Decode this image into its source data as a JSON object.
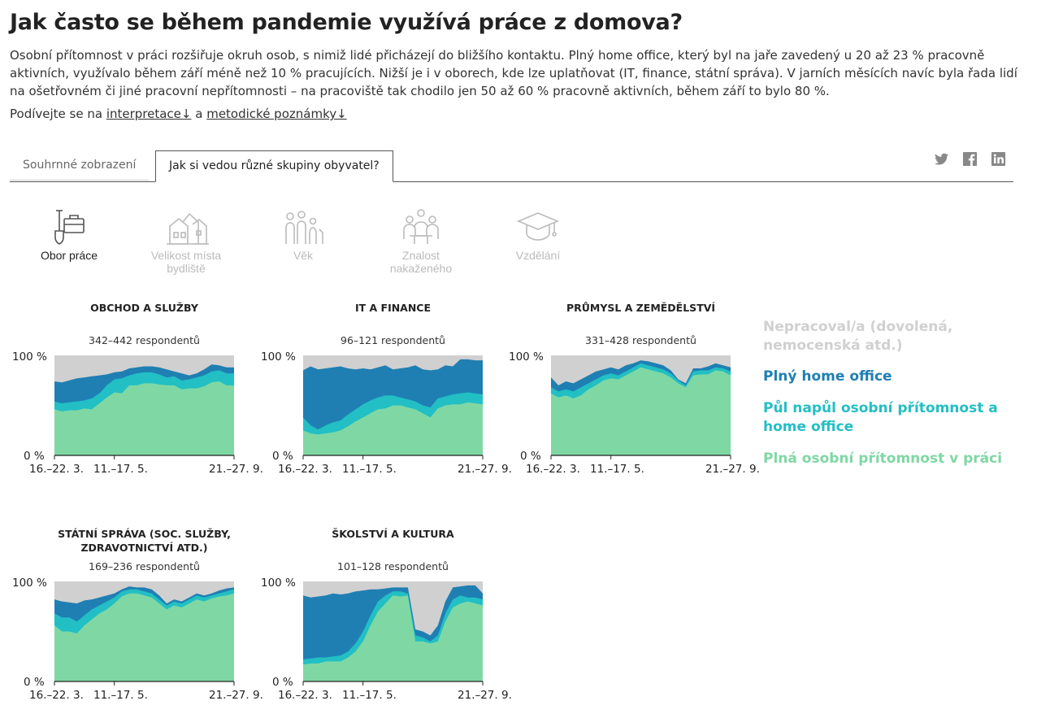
{
  "title": "Jak často se během pandemie využívá práce z domova?",
  "intro": "Osobní přítomnost v práci rozšiřuje okruh osob, s nimiž lidé přicházejí do bližšího kontaktu. Plný home office, který byl na jaře zavedený u 20 až 23 % pracovně aktivních, využívalo během září méně než 10 % pracujících. Nižší je i v oborech, kde lze uplatňovat (IT, finance, státní správa). V jarních měsících navíc byla řada lidí na ošetřovném či jiné pracovní nepřítomnosti – na pracoviště tak chodilo jen 50 až 60 % pracovně aktivních, během září to bylo 80 %.",
  "see": {
    "prefix": "Podívejte se na ",
    "link1": "interpretace↓",
    "mid": " a ",
    "link2": "metodické poznámky↓"
  },
  "tabs": [
    {
      "label": "Souhrnné zobrazení"
    },
    {
      "label": "Jak si vedou různé skupiny obyvatel?"
    }
  ],
  "categories": [
    {
      "label": "Obor práce",
      "icon": "shovel-briefcase-icon"
    },
    {
      "label": "Velikost místa bydliště",
      "icon": "houses-icon"
    },
    {
      "label": "Věk",
      "icon": "people-ages-icon"
    },
    {
      "label": "Znalost nakaženého",
      "icon": "people-meeting-icon"
    },
    {
      "label": "Vzdělání",
      "icon": "graduation-cap-icon"
    }
  ],
  "colors": {
    "none": "#d0d0d0",
    "full_home": "#1f7fb3",
    "half": "#22bfc4",
    "full_office": "#7fd8a4"
  },
  "legend": [
    {
      "label": "Nepracoval/a (dovolená, nemocenská atd.)",
      "color": "#d0d0d0"
    },
    {
      "label": "Plný home office",
      "color": "#1f7fb3"
    },
    {
      "label": "Půl napůl osobní přítomnost a home office",
      "color": "#22bfc4"
    },
    {
      "label": "Plná osobní přítomnost v práci",
      "color": "#7fd8a4"
    }
  ],
  "chart_data": [
    {
      "type": "area",
      "title": "OBCHOD A SLUŽBY",
      "subtitle": "342–442 respondentů",
      "ylim": [
        0,
        100
      ],
      "yticks": [
        "100 %",
        "0 %"
      ],
      "xticks": [
        "16.–22. 3.",
        "11.–17. 5.",
        "21.–27. 9."
      ],
      "series": {
        "office": [
          46,
          44,
          45,
          45,
          47,
          46,
          52,
          58,
          63,
          62,
          70,
          70,
          72,
          72,
          71,
          70,
          70,
          66,
          67,
          67,
          69,
          73,
          74,
          70,
          70
        ],
        "half": [
          54,
          52,
          53,
          54,
          55,
          57,
          62,
          70,
          76,
          77,
          80,
          82,
          83,
          83,
          81,
          78,
          79,
          75,
          76,
          78,
          80,
          84,
          85,
          82,
          82
        ],
        "home": [
          74,
          73,
          75,
          77,
          78,
          79,
          80,
          81,
          83,
          84,
          87,
          88,
          89,
          89,
          88,
          86,
          84,
          82,
          80,
          82,
          86,
          91,
          90,
          88,
          88
        ]
      }
    },
    {
      "type": "area",
      "title": "IT A FINANCE",
      "subtitle": "96–121 respondentů",
      "ylim": [
        0,
        100
      ],
      "yticks": [
        "100 %",
        "0 %"
      ],
      "xticks": [
        "16.–22. 3.",
        "11.–17. 5.",
        "21.–27. 9."
      ],
      "series": {
        "office": [
          25,
          22,
          21,
          22,
          23,
          25,
          29,
          34,
          38,
          42,
          46,
          47,
          50,
          50,
          48,
          46,
          42,
          38,
          47,
          50,
          51,
          51,
          53,
          52,
          51
        ],
        "half": [
          38,
          30,
          26,
          30,
          33,
          35,
          41,
          46,
          51,
          55,
          58,
          60,
          60,
          58,
          56,
          54,
          50,
          48,
          57,
          59,
          61,
          62,
          63,
          62,
          61
        ],
        "home": [
          85,
          89,
          86,
          87,
          88,
          89,
          87,
          86,
          87,
          86,
          88,
          90,
          86,
          87,
          88,
          90,
          86,
          85,
          86,
          90,
          89,
          96,
          96,
          95,
          95
        ]
      }
    },
    {
      "type": "area",
      "title": "PRŮMYSL A ZEMĚDĚLSTVÍ",
      "subtitle": "331–428 respondentů",
      "ylim": [
        0,
        100
      ],
      "yticks": [
        "100 %",
        "0 %"
      ],
      "xticks": [
        "16.–22. 3.",
        "11.–17. 5.",
        "21.–27. 9."
      ],
      "series": {
        "office": [
          62,
          58,
          60,
          57,
          60,
          66,
          70,
          75,
          77,
          76,
          80,
          84,
          88,
          86,
          84,
          82,
          78,
          72,
          68,
          80,
          81,
          81,
          85,
          84,
          80
        ],
        "half": [
          68,
          64,
          66,
          64,
          68,
          72,
          76,
          80,
          82,
          80,
          84,
          88,
          92,
          90,
          88,
          86,
          82,
          75,
          70,
          84,
          85,
          85,
          88,
          87,
          84
        ],
        "home": [
          78,
          70,
          74,
          72,
          76,
          80,
          84,
          86,
          88,
          86,
          90,
          92,
          95,
          94,
          92,
          90,
          85,
          76,
          72,
          87,
          87,
          89,
          92,
          90,
          88
        ]
      }
    },
    {
      "type": "area",
      "title": "STÁTNÍ SPRÁVA (SOC. SLUŽBY, ZDRAVOTNICTVÍ ATD.)",
      "subtitle": "169–236 respondentů",
      "ylim": [
        0,
        100
      ],
      "yticks": [
        "100 %",
        "0 %"
      ],
      "xticks": [
        "16.–22. 3.",
        "11.–17. 5.",
        "21.–27. 9."
      ],
      "series": {
        "office": [
          56,
          50,
          50,
          48,
          56,
          62,
          68,
          72,
          78,
          85,
          88,
          88,
          86,
          84,
          78,
          72,
          76,
          74,
          78,
          82,
          80,
          83,
          85,
          86,
          88
        ],
        "half": [
          68,
          64,
          64,
          60,
          66,
          72,
          76,
          80,
          84,
          90,
          92,
          92,
          90,
          88,
          82,
          76,
          80,
          78,
          82,
          86,
          84,
          86,
          88,
          90,
          92
        ],
        "home": [
          82,
          80,
          79,
          78,
          81,
          82,
          84,
          86,
          88,
          92,
          95,
          94,
          94,
          92,
          86,
          78,
          82,
          80,
          84,
          88,
          86,
          88,
          91,
          93,
          94
        ]
      }
    },
    {
      "type": "area",
      "title": "ŠKOLSTVÍ A KULTURA",
      "subtitle": "101–128 respondentů",
      "ylim": [
        0,
        100
      ],
      "yticks": [
        "100 %",
        "0 %"
      ],
      "xticks": [
        "16.–22. 3.",
        "11.–17. 5.",
        "21.–27. 9."
      ],
      "series": {
        "office": [
          17,
          18,
          18,
          20,
          20,
          20,
          24,
          30,
          40,
          56,
          70,
          78,
          86,
          85,
          86,
          40,
          40,
          38,
          40,
          60,
          74,
          78,
          80,
          78,
          76
        ],
        "half": [
          22,
          23,
          24,
          24,
          25,
          26,
          30,
          38,
          50,
          66,
          80,
          86,
          90,
          90,
          88,
          46,
          44,
          40,
          46,
          68,
          82,
          86,
          84,
          84,
          82
        ],
        "home": [
          86,
          84,
          85,
          86,
          88,
          87,
          88,
          90,
          91,
          92,
          92,
          93,
          94,
          94,
          94,
          52,
          50,
          46,
          56,
          80,
          94,
          95,
          96,
          96,
          88
        ]
      }
    }
  ]
}
